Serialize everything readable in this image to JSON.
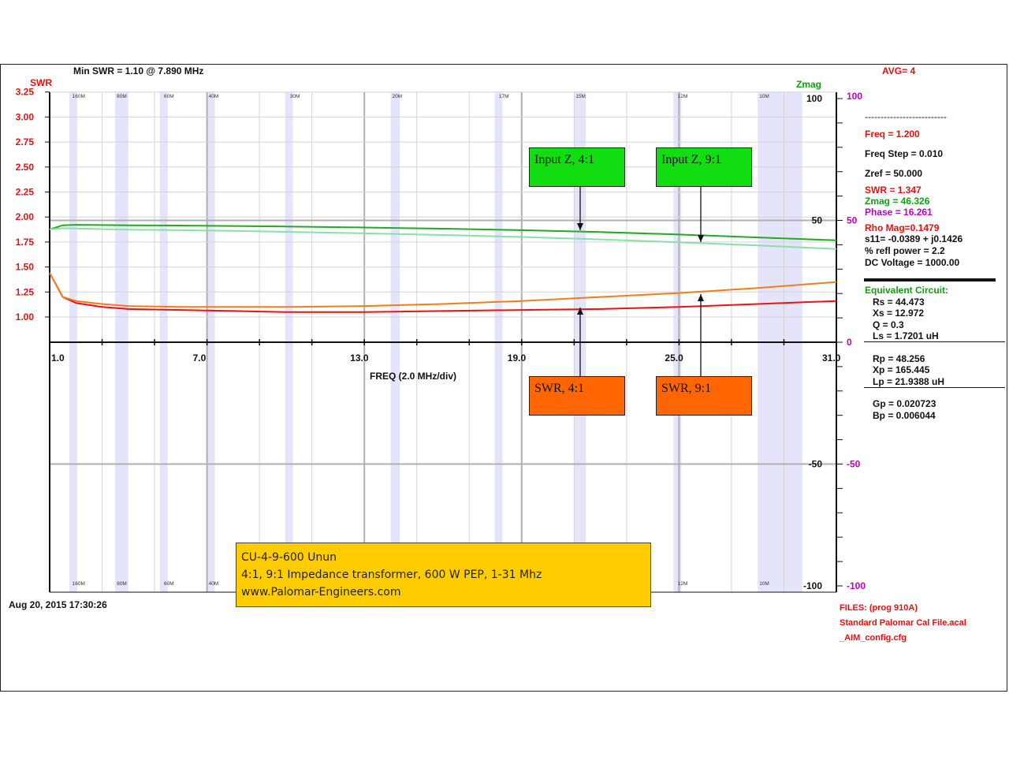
{
  "header": {
    "min_swr": "Min SWR =   1.10 @  7.890 MHz",
    "avg": "AVG=  4"
  },
  "axes": {
    "left_title": "SWR",
    "right_title": "Zmag",
    "x_title": "FREQ (2.0 MHz/div)",
    "left_ticks": [
      "3.25",
      "3.00",
      "2.75",
      "2.50",
      "2.25",
      "2.00",
      "1.75",
      "1.50",
      "1.25",
      "1.00"
    ],
    "x_ticks": [
      "1.0",
      "7.0",
      "13.0",
      "19.0",
      "25.0",
      "31.0"
    ],
    "zmag_ticks": [
      "100",
      "50",
      "-50",
      "-100"
    ],
    "phase_ticks": [
      "100",
      "50",
      "0",
      "-50",
      "-100"
    ],
    "band_labels_top": [
      "160M",
      "80M",
      "60M",
      "40M",
      "30M",
      "20M",
      "17M",
      "15M",
      "12M",
      "10M"
    ],
    "band_labels_bottom": [
      "160M",
      "80M",
      "60M",
      "40M",
      "12M",
      "10M"
    ]
  },
  "timestamp": "Aug 20, 2015  17:30:26",
  "readout": {
    "dashes": "--------------------------",
    "freq": "Freq = 1.200",
    "freq_step": "Freq Step = 0.010",
    "zref": "Zref =   50.000",
    "swr": "SWR =   1.347",
    "zmag": "Zmag =  46.326",
    "phase": "Phase =   16.261",
    "rho": "Rho Mag=0.1479",
    "s11": "s11= -0.0389 + j0.1426",
    "refl": "% refl power =  2.2",
    "dc": "DC Voltage =  1000.00",
    "equiv_title": "Equivalent Circuit:",
    "rs": "Rs =   44.473",
    "xs": "Xs =   12.972",
    "q": "Q =  0.3",
    "ls": "Ls =    1.7201 uH",
    "rp": "Rp =   48.256",
    "xp": "Xp =  165.445",
    "lp": "Lp =   21.9388  uH",
    "gp": "Gp =  0.020723",
    "bp": "Bp =  0.006044"
  },
  "files": {
    "label": "FILES:  (prog 910A)",
    "cal": "Standard Palomar Cal File.acal",
    "cfg": "_AIM_config.cfg"
  },
  "annotations": {
    "input_4_1": "Input Z, 4:1",
    "input_9_1": "Input Z, 9:1",
    "swr_4_1": "SWR, 4:1",
    "swr_9_1": "SWR, 9:1"
  },
  "caption": {
    "line1": "CU-4-9-600 Unun",
    "line2": "4:1, 9:1 Impedance transformer, 600 W PEP, 1-31 Mhz",
    "line3": "www.Palomar-Engineers.com"
  },
  "colors": {
    "swr_4_1": "#ee1111",
    "swr_9_1": "#f07d1a",
    "zmag_4_1": "#22aa22",
    "zmag_9_1": "#88e0a8",
    "band": "#e4e4fa",
    "annot_green": "#11dd11",
    "annot_orange": "#ff6600",
    "caption_bg": "#ffcc00"
  },
  "chart_data": {
    "type": "line",
    "x_unit": "MHz",
    "xlim": [
      1,
      31
    ],
    "swr_ylim": [
      1.0,
      3.25
    ],
    "zmag_ylim": [
      -100,
      100
    ],
    "x": [
      1.0,
      1.5,
      2,
      3,
      4,
      6,
      8,
      10,
      13,
      16,
      19,
      22,
      25,
      28,
      31
    ],
    "series": [
      {
        "name": "SWR, 4:1",
        "axis": "swr",
        "values": [
          1.44,
          1.2,
          1.14,
          1.1,
          1.08,
          1.07,
          1.06,
          1.05,
          1.05,
          1.06,
          1.07,
          1.08,
          1.1,
          1.13,
          1.16
        ]
      },
      {
        "name": "SWR, 9:1",
        "axis": "swr",
        "values": [
          1.44,
          1.2,
          1.16,
          1.13,
          1.11,
          1.1,
          1.1,
          1.1,
          1.11,
          1.13,
          1.16,
          1.2,
          1.24,
          1.29,
          1.35
        ]
      },
      {
        "name": "Input Z, 4:1",
        "axis": "zmag",
        "values": [
          46.3,
          48.0,
          48.2,
          48.1,
          48.0,
          47.9,
          47.7,
          47.5,
          47.1,
          46.6,
          46.0,
          45.2,
          44.2,
          43.0,
          41.8
        ]
      },
      {
        "name": "Input Z, 9:1",
        "axis": "zmag",
        "values": [
          46.3,
          46.8,
          46.7,
          46.4,
          46.2,
          46.0,
          45.7,
          45.3,
          44.7,
          44.0,
          43.2,
          42.2,
          41.0,
          39.7,
          38.3
        ]
      }
    ],
    "bands": [
      {
        "name": "160M",
        "from": 1.8,
        "to": 2.0
      },
      {
        "name": "80M",
        "from": 3.5,
        "to": 4.0
      },
      {
        "name": "60M",
        "from": 5.3,
        "to": 5.4
      },
      {
        "name": "40M",
        "from": 7.0,
        "to": 7.3
      },
      {
        "name": "30M",
        "from": 10.1,
        "to": 10.15
      },
      {
        "name": "20M",
        "from": 14.0,
        "to": 14.35
      },
      {
        "name": "17M",
        "from": 18.07,
        "to": 18.17
      },
      {
        "name": "15M",
        "from": 21.0,
        "to": 21.45
      },
      {
        "name": "12M",
        "from": 24.89,
        "to": 24.99
      },
      {
        "name": "10M",
        "from": 28.0,
        "to": 29.7
      }
    ]
  }
}
